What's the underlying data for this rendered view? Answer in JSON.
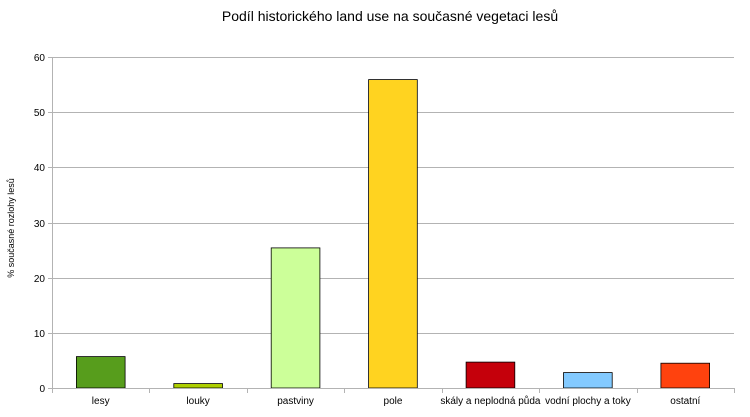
{
  "chart_data": {
    "type": "bar",
    "title": "Podíl historického land use na současné vegetaci lesů",
    "xlabel": "",
    "ylabel": "% současné rozlohy lesů",
    "ylim": [
      0,
      60
    ],
    "yticks": [
      0,
      10,
      20,
      30,
      40,
      50,
      60
    ],
    "grid": true,
    "legend": "none",
    "categories": [
      "lesy",
      "louky",
      "pastviny",
      "pole",
      "skály a neplodná půda",
      "vodní plochy a toky",
      "ostatní"
    ],
    "values": [
      5.7,
      0.8,
      25.4,
      55.9,
      4.7,
      2.8,
      4.5
    ],
    "colors": [
      "#579d1c",
      "#aecf00",
      "#ccff99",
      "#ffd320",
      "#c5000b",
      "#83caff",
      "#ff420e"
    ]
  }
}
